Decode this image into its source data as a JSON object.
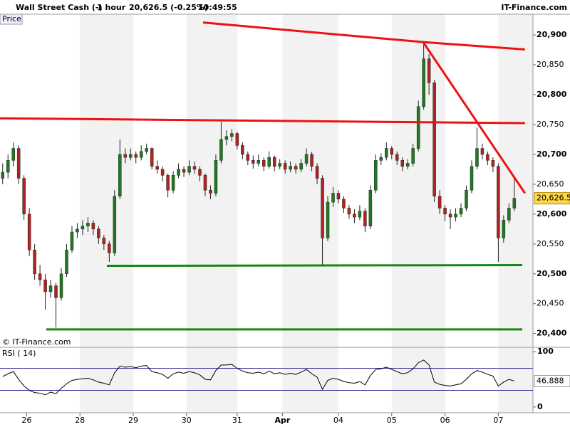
{
  "header": {
    "instrument": "Wall Street Cash (-)",
    "interval": "1 hour",
    "quote": "20,626.5 (-0.25%)",
    "time": "10:49:55",
    "brand": "IT-Finance.com",
    "copyright": "© IT-Finance.com"
  },
  "chart_data": [
    {
      "type": "candlestick",
      "title": "Price",
      "xlim": [
        -0.5,
        99.5
      ],
      "ylim": [
        20377,
        20918
      ],
      "xticks": [
        {
          "value": 4.5,
          "label": "26"
        },
        {
          "value": 14.5,
          "label": "28"
        },
        {
          "value": 24.5,
          "label": "29"
        },
        {
          "value": 34.5,
          "label": "30"
        },
        {
          "value": 44,
          "label": "31"
        },
        {
          "value": 52.5,
          "label": "Apr"
        },
        {
          "value": 63,
          "label": "04"
        },
        {
          "value": 73,
          "label": "05"
        },
        {
          "value": 83,
          "label": "06"
        },
        {
          "value": 93,
          "label": "07"
        }
      ],
      "yticks": [
        {
          "value": 20400,
          "label": "20,400"
        },
        {
          "value": 20450,
          "label": "20,450"
        },
        {
          "value": 20500,
          "label": "20,500"
        },
        {
          "value": 20550,
          "label": "20,550"
        },
        {
          "value": 20600,
          "label": "20,600"
        },
        {
          "value": 20650,
          "label": "20,650"
        },
        {
          "value": 20700,
          "label": "20,700"
        },
        {
          "value": 20750,
          "label": "20,750"
        },
        {
          "value": 20800,
          "label": "20,800"
        },
        {
          "value": 20850,
          "label": "20,850"
        },
        {
          "value": 20900,
          "label": "20,900"
        }
      ],
      "up_color": "#1f7a1f",
      "down_color": "#b22222",
      "last_label": "20,626.5",
      "ohlc": [
        [
          20660,
          20685,
          20650,
          20670
        ],
        [
          20670,
          20700,
          20660,
          20690
        ],
        [
          20690,
          20720,
          20680,
          20710
        ],
        [
          20710,
          20715,
          20650,
          20660
        ],
        [
          20660,
          20665,
          20590,
          20600
        ],
        [
          20600,
          20610,
          20530,
          20540
        ],
        [
          20540,
          20550,
          20490,
          20500
        ],
        [
          20500,
          20515,
          20480,
          20490
        ],
        [
          20490,
          20500,
          20440,
          20470
        ],
        [
          20470,
          20490,
          20460,
          20480
        ],
        [
          20480,
          20485,
          20410,
          20460
        ],
        [
          20460,
          20510,
          20455,
          20500
        ],
        [
          20500,
          20550,
          20495,
          20540
        ],
        [
          20540,
          20580,
          20535,
          20570
        ],
        [
          20570,
          20585,
          20560,
          20575
        ],
        [
          20575,
          20590,
          20565,
          20580
        ],
        [
          20580,
          20595,
          20570,
          20585
        ],
        [
          20585,
          20590,
          20565,
          20575
        ],
        [
          20575,
          20580,
          20550,
          20560
        ],
        [
          20560,
          20565,
          20540,
          20550
        ],
        [
          20550,
          20555,
          20520,
          20535
        ],
        [
          20535,
          20640,
          20530,
          20630
        ],
        [
          20630,
          20725,
          20625,
          20700
        ],
        [
          20700,
          20710,
          20685,
          20695
        ],
        [
          20695,
          20710,
          20690,
          20700
        ],
        [
          20700,
          20705,
          20685,
          20695
        ],
        [
          20695,
          20715,
          20690,
          20705
        ],
        [
          20705,
          20718,
          20700,
          20710
        ],
        [
          20710,
          20712,
          20675,
          20680
        ],
        [
          20680,
          20690,
          20668,
          20675
        ],
        [
          20675,
          20680,
          20655,
          20665
        ],
        [
          20665,
          20668,
          20628,
          20640
        ],
        [
          20640,
          20672,
          20635,
          20665
        ],
        [
          20665,
          20685,
          20660,
          20675
        ],
        [
          20675,
          20680,
          20662,
          20670
        ],
        [
          20670,
          20690,
          20665,
          20680
        ],
        [
          20680,
          20688,
          20668,
          20675
        ],
        [
          20675,
          20680,
          20655,
          20665
        ],
        [
          20665,
          20668,
          20630,
          20640
        ],
        [
          20640,
          20648,
          20625,
          20635
        ],
        [
          20635,
          20700,
          20630,
          20690
        ],
        [
          20690,
          20755,
          20685,
          20725
        ],
        [
          20725,
          20740,
          20715,
          20730
        ],
        [
          20730,
          20742,
          20722,
          20735
        ],
        [
          20735,
          20738,
          20708,
          20715
        ],
        [
          20715,
          20720,
          20692,
          20700
        ],
        [
          20700,
          20705,
          20682,
          20690
        ],
        [
          20690,
          20698,
          20676,
          20685
        ],
        [
          20685,
          20700,
          20680,
          20690
        ],
        [
          20690,
          20695,
          20672,
          20680
        ],
        [
          20680,
          20705,
          20676,
          20695
        ],
        [
          20695,
          20698,
          20672,
          20680
        ],
        [
          20680,
          20692,
          20675,
          20685
        ],
        [
          20685,
          20690,
          20668,
          20675
        ],
        [
          20675,
          20688,
          20670,
          20680
        ],
        [
          20680,
          20685,
          20668,
          20675
        ],
        [
          20675,
          20692,
          20670,
          20685
        ],
        [
          20685,
          20710,
          20680,
          20700
        ],
        [
          20700,
          20704,
          20672,
          20680
        ],
        [
          20680,
          20685,
          20650,
          20660
        ],
        [
          20660,
          20665,
          20515,
          20560
        ],
        [
          20560,
          20630,
          20555,
          20620
        ],
        [
          20620,
          20645,
          20612,
          20635
        ],
        [
          20635,
          20640,
          20618,
          20625
        ],
        [
          20625,
          20630,
          20602,
          20610
        ],
        [
          20610,
          20615,
          20592,
          20600
        ],
        [
          20600,
          20608,
          20585,
          20595
        ],
        [
          20595,
          20615,
          20590,
          20605
        ],
        [
          20605,
          20610,
          20570,
          20580
        ],
        [
          20580,
          20648,
          20575,
          20640
        ],
        [
          20640,
          20700,
          20635,
          20690
        ],
        [
          20690,
          20702,
          20682,
          20695
        ],
        [
          20695,
          20720,
          20690,
          20710
        ],
        [
          20710,
          20714,
          20692,
          20700
        ],
        [
          20700,
          20705,
          20682,
          20690
        ],
        [
          20690,
          20695,
          20672,
          20680
        ],
        [
          20680,
          20692,
          20675,
          20685
        ],
        [
          20685,
          20718,
          20680,
          20710
        ],
        [
          20710,
          20790,
          20705,
          20780
        ],
        [
          20780,
          20888,
          20775,
          20860
        ],
        [
          20860,
          20868,
          20800,
          20820
        ],
        [
          20820,
          20825,
          20620,
          20630
        ],
        [
          20630,
          20640,
          20600,
          20610
        ],
        [
          20610,
          20615,
          20588,
          20600
        ],
        [
          20600,
          20608,
          20575,
          20595
        ],
        [
          20595,
          20610,
          20588,
          20600
        ],
        [
          20600,
          20618,
          20595,
          20610
        ],
        [
          20610,
          20648,
          20605,
          20640
        ],
        [
          20640,
          20690,
          20635,
          20680
        ],
        [
          20680,
          20745,
          20675,
          20710
        ],
        [
          20710,
          20718,
          20692,
          20700
        ],
        [
          20700,
          20705,
          20682,
          20690
        ],
        [
          20690,
          20695,
          20670,
          20680
        ],
        [
          20680,
          20685,
          20520,
          20560
        ],
        [
          20560,
          20598,
          20552,
          20590
        ],
        [
          20590,
          20618,
          20585,
          20610
        ],
        [
          20610,
          20660,
          20605,
          20626.5
        ]
      ],
      "trendlines": [
        {
          "color": "#ee1111",
          "points": [
            [
              37.6,
              20920.8
            ],
            [
              78.9,
              20888
            ],
            [
              98,
              20875.7
            ]
          ]
        },
        {
          "color": "#ee1111",
          "points": [
            [
              -0.5,
              20760.4
            ],
            [
              98,
              20752.3
            ]
          ]
        },
        {
          "color": "#ee1111",
          "points": [
            [
              78.9,
              20888
            ],
            [
              98,
              20635
            ]
          ]
        },
        {
          "color": "#118811",
          "points": [
            [
              19.55,
              20513.4
            ],
            [
              97.5,
              20514.6
            ]
          ]
        },
        {
          "color": "#118811",
          "points": [
            [
              8.19,
              20406.9
            ],
            [
              97.5,
              20406.9
            ]
          ]
        }
      ]
    },
    {
      "type": "line",
      "title": "RSI ( 14)",
      "xlim": [
        -0.5,
        99.5
      ],
      "ylim": [
        -10.5,
        108
      ],
      "yticks": [
        0,
        100
      ],
      "levels": [
        30,
        70
      ],
      "level_color": "#333399",
      "color": "#000000",
      "values": [
        55,
        60,
        64,
        50,
        38,
        30,
        26,
        25,
        22,
        27,
        24,
        34,
        42,
        48,
        50,
        51,
        52,
        49,
        45,
        43,
        40,
        62,
        74,
        72,
        73,
        71,
        74,
        75,
        64,
        62,
        59,
        52,
        60,
        63,
        61,
        64,
        62,
        58,
        50,
        49,
        66,
        76,
        76,
        77,
        70,
        65,
        62,
        61,
        63,
        60,
        65,
        60,
        62,
        59,
        61,
        59,
        63,
        68,
        60,
        54,
        32,
        48,
        52,
        50,
        46,
        44,
        43,
        46,
        40,
        57,
        68,
        69,
        72,
        68,
        64,
        60,
        62,
        69,
        80,
        85,
        76,
        45,
        41,
        39,
        38,
        40,
        42,
        50,
        60,
        66,
        63,
        59,
        56,
        38,
        45,
        50,
        46.888
      ]
    }
  ]
}
